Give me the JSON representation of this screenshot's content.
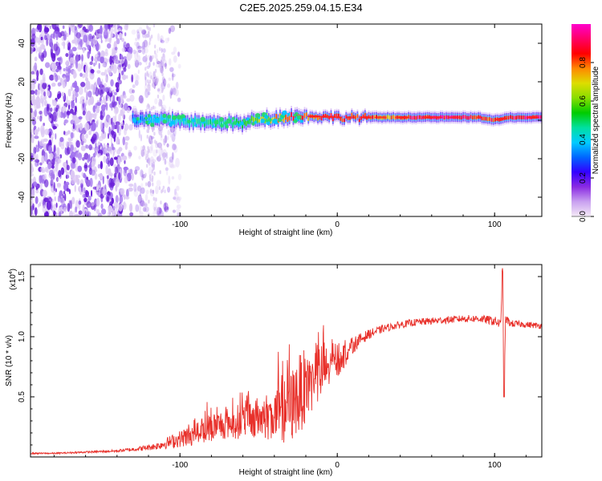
{
  "title": "C2E5.2025.259.04.15.E34",
  "chart_data": [
    {
      "type": "heatmap",
      "name": "spectrogram",
      "xlabel": "Height of straight line (km)",
      "ylabel": "Frequency (Hz)",
      "xlim": [
        -195,
        130
      ],
      "ylim": [
        -50,
        50
      ],
      "xticks": [
        -100,
        0,
        100
      ],
      "xtick_labels": [
        "-100",
        "0",
        "100"
      ],
      "yticks": [
        40,
        20,
        0,
        -20,
        -40
      ],
      "ytick_labels": [
        "40",
        "20",
        "0",
        "-20",
        "-40"
      ],
      "colorbar": {
        "label": "Normalized spectral amplitude",
        "range": [
          0,
          1
        ],
        "ticks": [
          0.0,
          0.2,
          0.4,
          0.6,
          0.8
        ],
        "tick_labels": [
          "0.0",
          "0.2",
          "0.4",
          "0.6",
          "0.8"
        ],
        "colors": [
          "#f4eaf6",
          "#c9a0f0",
          "#8a2be2",
          "#3300ff",
          "#0066ff",
          "#00ccff",
          "#00e0a0",
          "#00cc00",
          "#88dd00",
          "#dddd00",
          "#ff8800",
          "#ff0000",
          "#ff0066",
          "#ff00cc"
        ]
      },
      "ridge": {
        "x": [
          -130,
          -120,
          -110,
          -100,
          -90,
          -80,
          -70,
          -60,
          -50,
          -40,
          -30,
          -20,
          -10,
          0,
          10,
          20,
          30,
          40,
          50,
          60,
          70,
          80,
          90,
          100,
          110,
          120,
          130
        ],
        "freq": [
          0.5,
          0,
          0,
          0,
          -1,
          -1.5,
          -1,
          -2,
          1,
          1,
          2,
          2,
          2,
          1.5,
          1.5,
          1.5,
          1.5,
          1.5,
          1.5,
          1.5,
          1.5,
          1.5,
          1.5,
          0,
          1.5,
          1.5,
          1.5
        ],
        "amplitude": [
          0.3,
          0.4,
          0.45,
          0.45,
          0.5,
          0.5,
          0.5,
          0.55,
          0.7,
          0.8,
          0.9,
          0.85,
          0.9,
          0.9,
          0.9,
          0.9,
          0.8,
          0.85,
          0.95,
          0.97,
          1.0,
          0.95,
          0.95,
          0.9,
          0.95,
          0.97,
          0.97
        ]
      },
      "noise_region_x": [
        -195,
        -100
      ]
    },
    {
      "type": "line",
      "name": "snr",
      "xlabel": "Height of straight line (km)",
      "ylabel": "SNR (10 * v/v)",
      "y_multiplier": "(x10",
      "y_multiplier_exp": "4",
      "xlim": [
        -195,
        130
      ],
      "ylim": [
        0,
        16000
      ],
      "xticks": [
        -100,
        0,
        100
      ],
      "xtick_labels": [
        "-100",
        "0",
        "100"
      ],
      "yticks": [
        5000,
        10000,
        15000
      ],
      "ytick_labels": [
        "0.5",
        "1.0",
        "1.5"
      ],
      "color": "#e8302a",
      "x": [
        -195,
        -180,
        -160,
        -140,
        -125,
        -115,
        -100,
        -90,
        -80,
        -70,
        -60,
        -50,
        -40,
        -30,
        -25,
        -20,
        -15,
        -10,
        -5,
        0,
        5,
        10,
        15,
        20,
        30,
        40,
        50,
        60,
        70,
        80,
        90,
        100,
        104,
        105,
        106,
        107,
        110,
        120,
        130
      ],
      "values": [
        300,
        300,
        400,
        500,
        700,
        900,
        1500,
        2000,
        2500,
        2800,
        3000,
        3200,
        3500,
        4000,
        5000,
        6000,
        6500,
        7000,
        7500,
        8000,
        8500,
        9300,
        9800,
        10200,
        10700,
        11000,
        11200,
        11300,
        11400,
        11500,
        11500,
        11300,
        11000,
        15500,
        5000,
        11500,
        11100,
        11000,
        10900
      ],
      "jitter": [
        60,
        60,
        80,
        100,
        200,
        300,
        700,
        1000,
        1200,
        1300,
        1500,
        1800,
        2200,
        3000,
        3500,
        3000,
        3000,
        2500,
        2000,
        1500,
        1000,
        700,
        500,
        400,
        300,
        300,
        300,
        300,
        300,
        300,
        300,
        400,
        400,
        0,
        0,
        400,
        300,
        250,
        250
      ]
    }
  ]
}
